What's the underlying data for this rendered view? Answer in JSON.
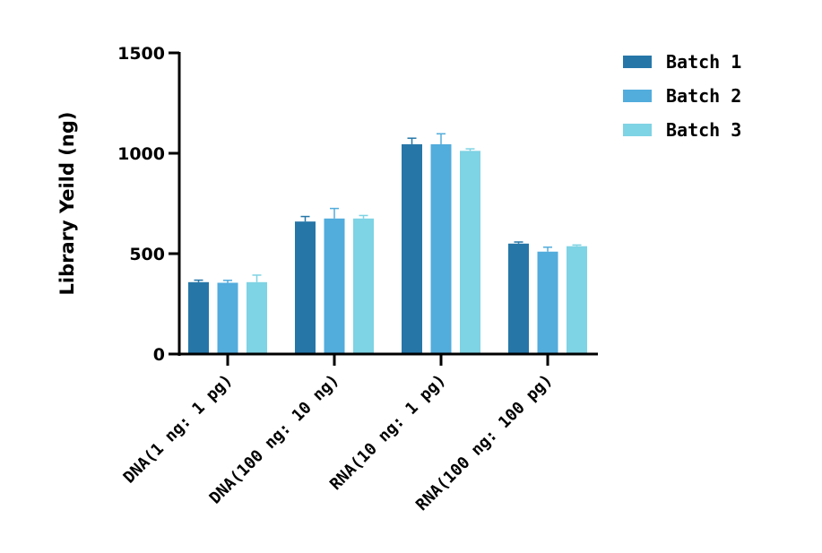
{
  "chart_data": {
    "type": "bar",
    "title": "",
    "xlabel": "",
    "ylabel": "Library Yeild (ng)",
    "ylim": [
      0,
      1500
    ],
    "yticks": [
      0,
      500,
      1000,
      1500
    ],
    "grid": false,
    "legend_position": "top-right",
    "categories": [
      "DNA(1 ng: 1 pg)",
      "DNA(100 ng: 10 ng)",
      "RNA(10 ng: 1 pg)",
      "RNA(100 ng: 100 pg)"
    ],
    "series": [
      {
        "name": "Batch 1",
        "color": "#2677a8",
        "values": [
          358,
          660,
          1045,
          550
        ],
        "errors": [
          10,
          25,
          30,
          8
        ]
      },
      {
        "name": "Batch 2",
        "color": "#52acdc",
        "values": [
          355,
          675,
          1045,
          510
        ],
        "errors": [
          12,
          50,
          52,
          22
        ]
      },
      {
        "name": "Batch 3",
        "color": "#7ed3e4",
        "values": [
          358,
          675,
          1012,
          537
        ],
        "errors": [
          35,
          15,
          10,
          6
        ]
      }
    ]
  }
}
